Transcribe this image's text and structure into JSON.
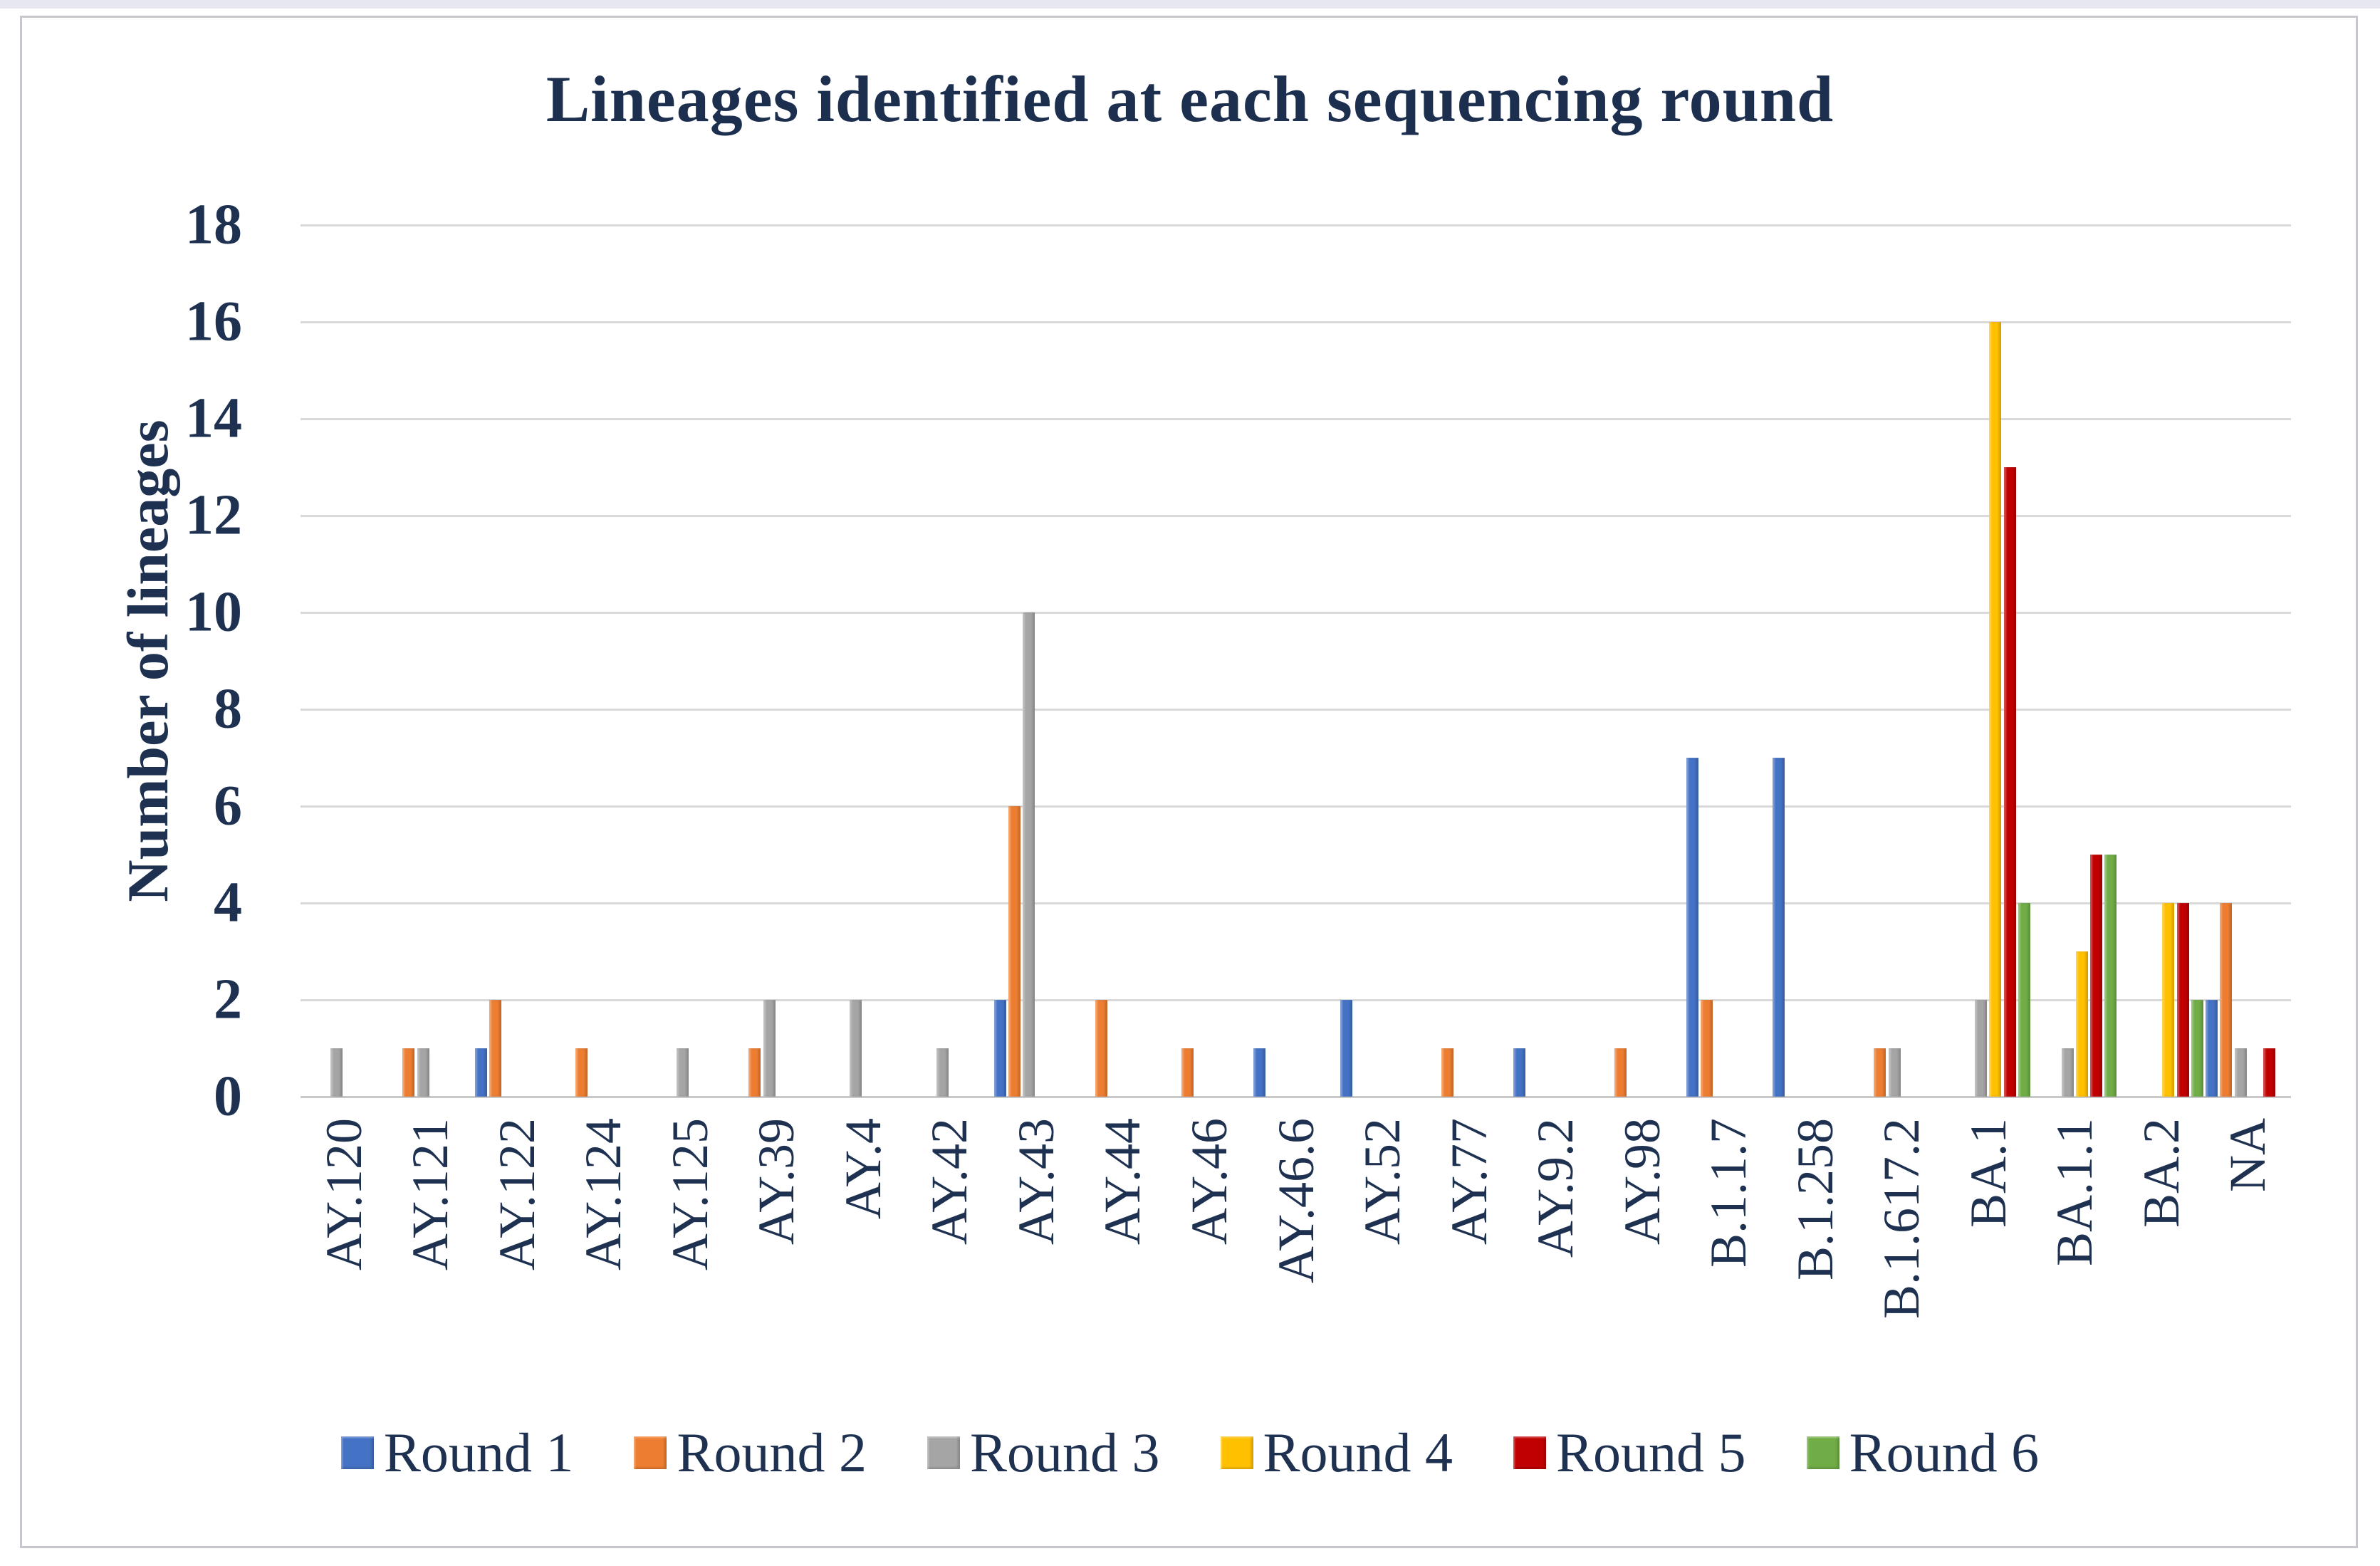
{
  "chart_data": {
    "type": "bar",
    "title": "Lineages identified at each sequencing round",
    "xlabel": "",
    "ylabel": "Number of lineages",
    "ylim": [
      0,
      18
    ],
    "ytick_step": 2,
    "grid": "horizontal",
    "legend_position": "bottom",
    "categories": [
      "AY.120",
      "AY.121",
      "AY.122",
      "AY.124",
      "AY.125",
      "AY.39",
      "AY.4",
      "AY.42",
      "AY.43",
      "AY.44",
      "AY.46",
      "AY.46.6",
      "AY.52",
      "AY.77",
      "AY.9.2",
      "AY.98",
      "B.1.1.7",
      "B.1.258",
      "B.1.617.2",
      "BA.1",
      "BA.1.1",
      "BA.2",
      "NA"
    ],
    "series": [
      {
        "name": "Round 1",
        "color": "#4472C4",
        "values": [
          0,
          0,
          1,
          0,
          0,
          0,
          0,
          0,
          2,
          0,
          0,
          1,
          2,
          0,
          1,
          0,
          7,
          7,
          0,
          0,
          0,
          0,
          2
        ]
      },
      {
        "name": "Round 2",
        "color": "#ED7D31",
        "values": [
          0,
          1,
          2,
          1,
          0,
          1,
          0,
          0,
          6,
          2,
          1,
          0,
          0,
          1,
          0,
          1,
          2,
          0,
          1,
          0,
          0,
          0,
          4
        ]
      },
      {
        "name": "Round 3",
        "color": "#A5A5A5",
        "values": [
          1,
          1,
          0,
          0,
          1,
          2,
          2,
          1,
          10,
          0,
          0,
          0,
          0,
          0,
          0,
          0,
          0,
          0,
          1,
          2,
          1,
          0,
          1
        ]
      },
      {
        "name": "Round 4",
        "color": "#FFC000",
        "values": [
          0,
          0,
          0,
          0,
          0,
          0,
          0,
          0,
          0,
          0,
          0,
          0,
          0,
          0,
          0,
          0,
          0,
          0,
          0,
          16,
          3,
          4,
          0
        ]
      },
      {
        "name": "Round 5",
        "color": "#C00000",
        "values": [
          0,
          0,
          0,
          0,
          0,
          0,
          0,
          0,
          0,
          0,
          0,
          0,
          0,
          0,
          0,
          0,
          0,
          0,
          0,
          13,
          5,
          4,
          1
        ]
      },
      {
        "name": "Round 6",
        "color": "#70AD47",
        "values": [
          0,
          0,
          0,
          0,
          0,
          0,
          0,
          0,
          0,
          0,
          0,
          0,
          0,
          0,
          0,
          0,
          0,
          0,
          0,
          4,
          5,
          2,
          0
        ]
      }
    ]
  }
}
